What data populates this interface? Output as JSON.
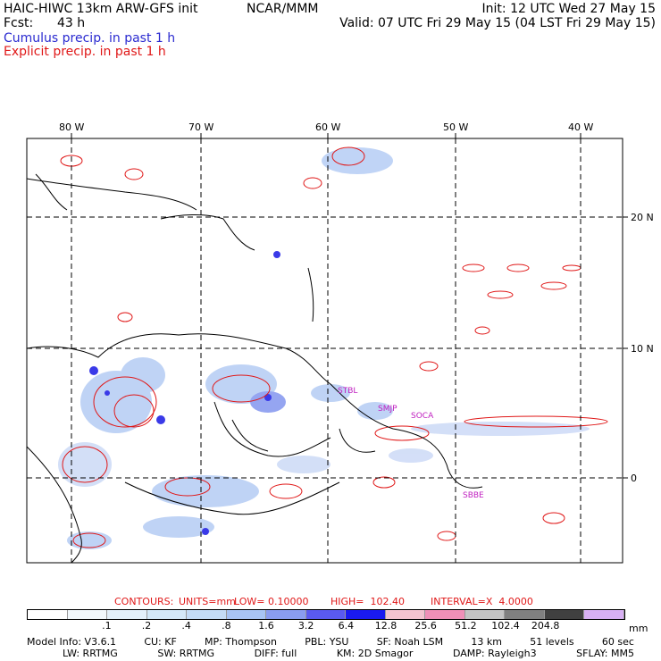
{
  "header": {
    "model": "HAIC-HIWC 13km ARW-GFS init",
    "org": "NCAR/MMM",
    "init": "Init: 12 UTC Wed 27 May 15",
    "fcst_label": "Fcst:",
    "fcst_value": "43 h",
    "valid": "Valid: 07 UTC Fri 29 May 15 (04 LST Fri 29 May 15)",
    "cumulus": "Cumulus precip. in past 1 h",
    "explicit": "Explicit precip. in past 1 h"
  },
  "map": {
    "lon_labels": [
      "80 W",
      "70 W",
      "60 W",
      "50 W",
      "40 W"
    ],
    "lat_labels": [
      "20 N",
      "10 N",
      "0"
    ],
    "stations": [
      "STBL",
      "SMJP",
      "SOCA",
      "SBBE"
    ]
  },
  "contours": {
    "title": "CONTOURS:",
    "units": "UNITS=mm",
    "low": "LOW= 0.10000",
    "high": "HIGH=  102.40",
    "interval": "INTERVAL=X  4.0000"
  },
  "colorbar": {
    "labels": [
      ".1",
      ".2",
      ".4",
      ".8",
      "1.6",
      "3.2",
      "6.4",
      "12.8",
      "25.6",
      "51.2",
      "102.4",
      "204.8"
    ],
    "unit": "mm",
    "colors": [
      "#ffffff",
      "#f2f8fc",
      "#e4f0fa",
      "#d4e8f8",
      "#c4dcf6",
      "#a8c4f4",
      "#8a9cf0",
      "#5a5af0",
      "#1a1af0",
      "#f4c4d0",
      "#f090b8",
      "#c4c4c4",
      "#808080",
      "#404040",
      "#d8b0f4"
    ]
  },
  "footer": {
    "line1": [
      "Model Info: V3.6.1",
      "CU: KF",
      "MP: Thompson",
      "PBL: YSU",
      "SF: Noah LSM",
      "13 km",
      "51 levels",
      "60 sec"
    ],
    "line2": [
      "LW: RRTMG",
      "SW: RRTMG",
      "DIFF: full",
      "KM: 2D Smagor",
      "DAMP: Rayleigh3",
      "SFLAY: MM5"
    ]
  }
}
